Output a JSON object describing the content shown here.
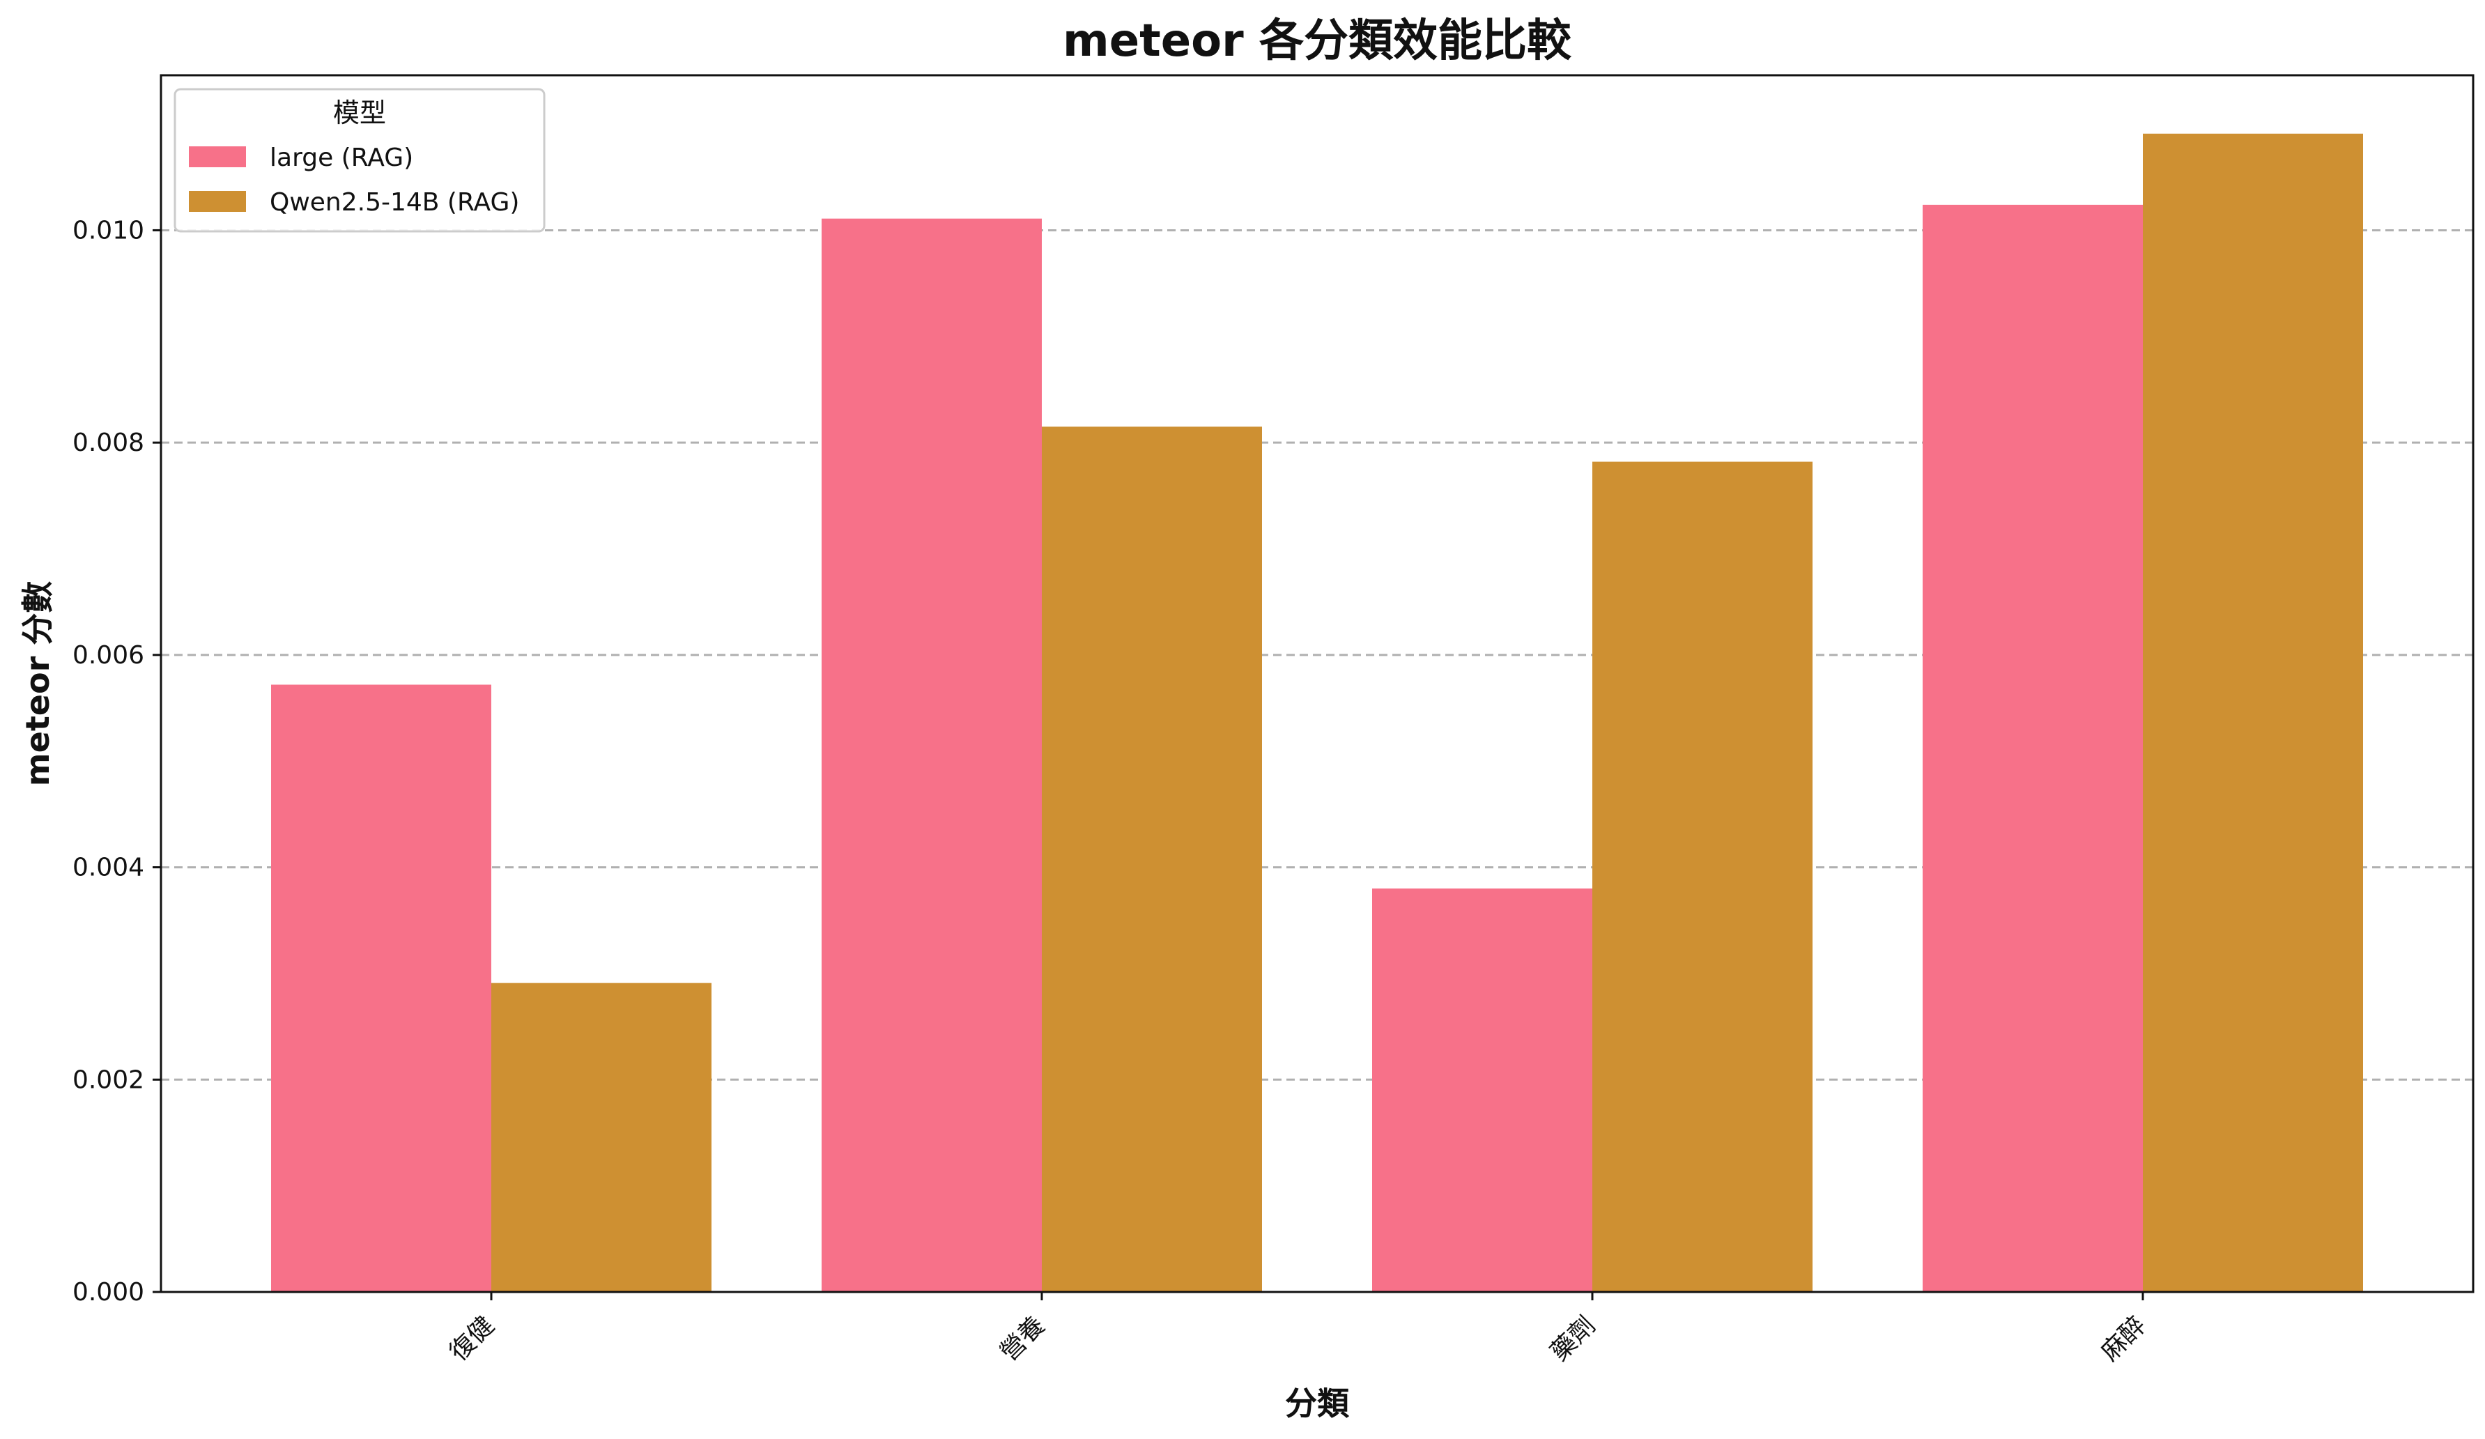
{
  "chart_data": {
    "type": "bar",
    "title": "meteor 各分類效能比較",
    "xlabel": "分類",
    "ylabel": "meteor 分數",
    "categories": [
      "復健",
      "營養",
      "藥劑",
      "麻醉"
    ],
    "series": [
      {
        "name": "large (RAG)",
        "color": "#f77189",
        "values": [
          0.00572,
          0.01011,
          0.0038,
          0.01024
        ]
      },
      {
        "name": "Qwen2.5-14B (RAG)",
        "color": "#ce9032",
        "values": [
          0.00291,
          0.00815,
          0.00782,
          0.01091
        ]
      }
    ],
    "ylim": [
      0,
      0.01146
    ],
    "yticks": [
      "0.000",
      "0.002",
      "0.004",
      "0.006",
      "0.008",
      "0.010"
    ],
    "grid": "y-dashed",
    "legend": {
      "title": "模型",
      "placement": "top-left"
    }
  }
}
